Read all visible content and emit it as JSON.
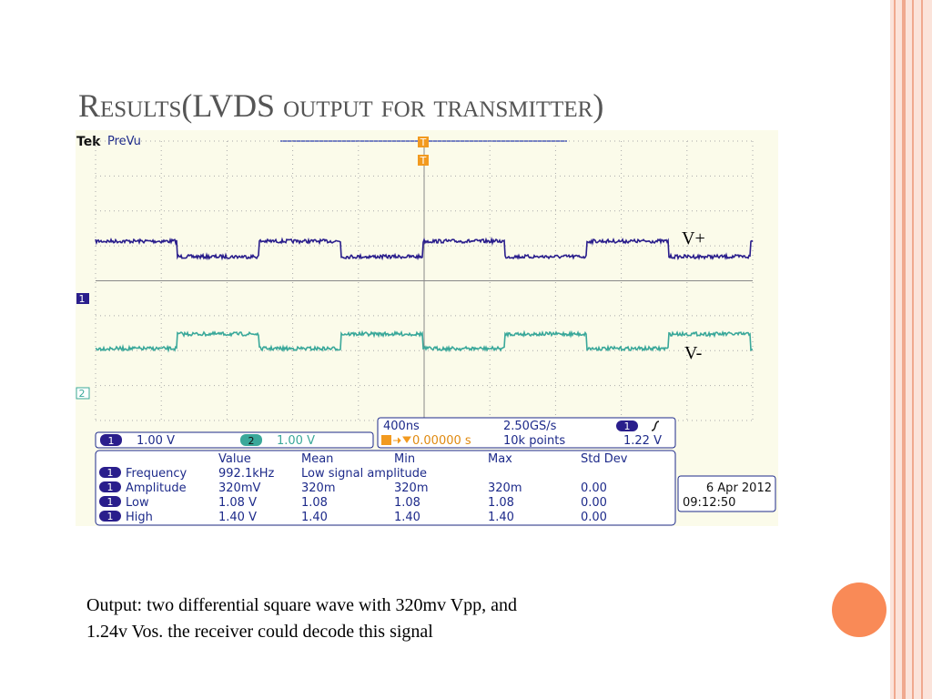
{
  "slide": {
    "title": "Results(LVDS output for transmitter)",
    "caption": [
      "Output: two differential square wave with 320mv Vpp, and",
      "1.24v Vos. the receiver could decode this signal"
    ]
  },
  "scope": {
    "brand": "Tek",
    "mode": "PreVu",
    "trigger_marker": "T",
    "trace_labels": [
      "V+",
      "V-"
    ],
    "channels": [
      "1",
      "2"
    ],
    "ch1_scale": "1.00 V",
    "ch2_scale": "1.00 V",
    "timebase": "400ns",
    "sample_rate": "2.50GS/s",
    "trigger_position": "0.00000 s",
    "record_length": "10k points",
    "trigger_level": "1.22 V",
    "measurements": {
      "headers": [
        "Value",
        "Mean",
        "Min",
        "Max",
        "Std Dev"
      ],
      "rows": [
        {
          "name": "Frequency",
          "cells": [
            "992.1kHz",
            "Low signal amplitude"
          ]
        },
        {
          "name": "Amplitude",
          "cells": [
            "320mV",
            "320m",
            "320m",
            "320m",
            "0.00"
          ]
        },
        {
          "name": "Low",
          "cells": [
            "1.08 V",
            "1.08",
            "1.08",
            "1.08",
            "0.00"
          ]
        },
        {
          "name": "High",
          "cells": [
            "1.40 V",
            "1.40",
            "1.40",
            "1.40",
            "0.00"
          ]
        }
      ]
    },
    "date": "6 Apr 2012",
    "time": "09:12:50"
  }
}
